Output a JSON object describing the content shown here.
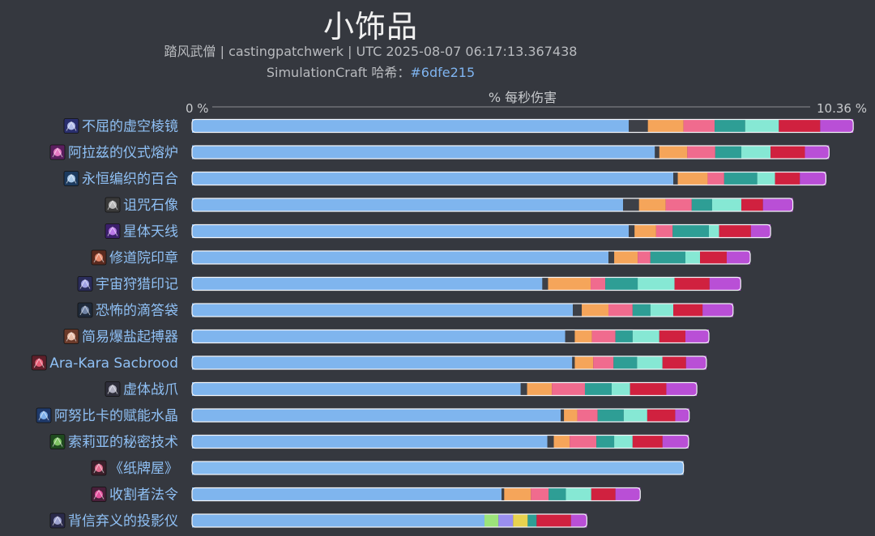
{
  "header": {
    "title": "小饰品",
    "subtitle": "踏风武僧 | castingpatchwerk | UTC 2025-08-07 06:17:13.367438",
    "hash_label": "SimulationCraft 哈希：",
    "hash_value": "#6dfe215"
  },
  "colors": {
    "base": "#7fb5ee",
    "base_alt": "#85bbf0",
    "dark": "#3d4047",
    "orange": "#f5a55a",
    "pink": "#f06b8e",
    "teal": "#2e9e95",
    "mint": "#86e8d4",
    "crimson": "#d0213f",
    "purple": "#b94fd6",
    "green": "#9be37a",
    "lavender": "#9a8ff0",
    "yellow": "#e8d24f"
  },
  "chart_data": {
    "type": "bar",
    "orientation": "horizontal",
    "stacked": true,
    "title": "小饰品",
    "axis_label": "% 每秒伤害",
    "xlim": [
      0,
      10.36
    ],
    "x_tick_labels": [
      "0 %",
      "10.36 %"
    ],
    "categories": [
      "不屈的虚空棱镜",
      "阿拉兹的仪式熔炉",
      "永恒编织的百合",
      "诅咒石像",
      "星体天线",
      "修道院印章",
      "宇宙狩猎印记",
      "恐怖的滴答袋",
      "简易爆盐起搏器",
      "Ara-Kara Sacbrood",
      "虚体战爪",
      "阿努比卡的赋能水晶",
      "索莉亚的秘密技术",
      "《纸牌屋》",
      "收割者法令",
      "背信弃义的投影仪"
    ],
    "icons": [
      "void-prism-icon",
      "ritual-forge-icon",
      "lily-icon",
      "cursed-statue-icon",
      "astral-antenna-icon",
      "monastery-seal-icon",
      "cosmic-mark-icon",
      "ticking-bag-icon",
      "salt-pacemaker-icon",
      "sacbrood-icon",
      "void-claw-icon",
      "crystal-icon",
      "secret-tech-icon",
      "house-of-cards-icon",
      "reaper-decree-icon",
      "projector-icon"
    ],
    "segments": [
      [
        [
          "base",
          6.87
        ],
        [
          "dark",
          0.3
        ],
        [
          "orange",
          0.56
        ],
        [
          "pink",
          0.49
        ],
        [
          "teal",
          0.48
        ],
        [
          "mint",
          0.53
        ],
        [
          "crimson",
          0.65
        ],
        [
          "purple",
          0.52
        ]
      ],
      [
        [
          "base",
          7.28
        ],
        [
          "dark",
          0.07
        ],
        [
          "orange",
          0.44
        ],
        [
          "pink",
          0.44
        ],
        [
          "teal",
          0.41
        ],
        [
          "mint",
          0.46
        ],
        [
          "crimson",
          0.54
        ],
        [
          "purple",
          0.38
        ]
      ],
      [
        [
          "base",
          7.57
        ],
        [
          "dark",
          0.07
        ],
        [
          "orange",
          0.47
        ],
        [
          "pink",
          0.26
        ],
        [
          "teal",
          0.52
        ],
        [
          "mint",
          0.28
        ],
        [
          "crimson",
          0.39
        ],
        [
          "purple",
          0.41
        ]
      ],
      [
        [
          "base",
          6.78
        ],
        [
          "dark",
          0.25
        ],
        [
          "orange",
          0.42
        ],
        [
          "pink",
          0.41
        ],
        [
          "teal",
          0.32
        ],
        [
          "mint",
          0.46
        ],
        [
          "crimson",
          0.34
        ],
        [
          "purple",
          0.47
        ]
      ],
      [
        [
          "base",
          6.87
        ],
        [
          "dark",
          0.09
        ],
        [
          "orange",
          0.34
        ],
        [
          "pink",
          0.26
        ],
        [
          "teal",
          0.57
        ],
        [
          "mint",
          0.16
        ],
        [
          "crimson",
          0.5
        ],
        [
          "purple",
          0.31
        ]
      ],
      [
        [
          "base",
          6.55
        ],
        [
          "dark",
          0.09
        ],
        [
          "orange",
          0.37
        ],
        [
          "pink",
          0.2
        ],
        [
          "teal",
          0.55
        ],
        [
          "mint",
          0.23
        ],
        [
          "crimson",
          0.42
        ],
        [
          "purple",
          0.37
        ]
      ],
      [
        [
          "base",
          5.51
        ],
        [
          "dark",
          0.09
        ],
        [
          "orange",
          0.67
        ],
        [
          "pink",
          0.23
        ],
        [
          "teal",
          0.51
        ],
        [
          "mint",
          0.58
        ],
        [
          "crimson",
          0.55
        ],
        [
          "purple",
          0.49
        ]
      ],
      [
        [
          "base",
          5.99
        ],
        [
          "dark",
          0.14
        ],
        [
          "orange",
          0.42
        ],
        [
          "pink",
          0.38
        ],
        [
          "teal",
          0.28
        ],
        [
          "mint",
          0.36
        ],
        [
          "crimson",
          0.46
        ],
        [
          "purple",
          0.48
        ]
      ],
      [
        [
          "base",
          5.87
        ],
        [
          "dark",
          0.15
        ],
        [
          "orange",
          0.27
        ],
        [
          "pink",
          0.37
        ],
        [
          "teal",
          0.27
        ],
        [
          "mint",
          0.42
        ],
        [
          "crimson",
          0.41
        ],
        [
          "purple",
          0.37
        ]
      ],
      [
        [
          "base",
          5.98
        ],
        [
          "dark",
          0.04
        ],
        [
          "orange",
          0.29
        ],
        [
          "pink",
          0.32
        ],
        [
          "teal",
          0.37
        ],
        [
          "mint",
          0.4
        ],
        [
          "crimson",
          0.37
        ],
        [
          "purple",
          0.32
        ]
      ],
      [
        [
          "base",
          5.17
        ],
        [
          "dark",
          0.1
        ],
        [
          "orange",
          0.39
        ],
        [
          "pink",
          0.52
        ],
        [
          "teal",
          0.42
        ],
        [
          "mint",
          0.29
        ],
        [
          "crimson",
          0.57
        ],
        [
          "purple",
          0.48
        ]
      ],
      [
        [
          "base",
          5.8
        ],
        [
          "dark",
          0.05
        ],
        [
          "orange",
          0.21
        ],
        [
          "pink",
          0.32
        ],
        [
          "teal",
          0.41
        ],
        [
          "mint",
          0.37
        ],
        [
          "crimson",
          0.44
        ],
        [
          "purple",
          0.22
        ]
      ],
      [
        [
          "base",
          5.59
        ],
        [
          "dark",
          0.1
        ],
        [
          "orange",
          0.25
        ],
        [
          "pink",
          0.42
        ],
        [
          "teal",
          0.28
        ],
        [
          "mint",
          0.29
        ],
        [
          "crimson",
          0.47
        ],
        [
          "purple",
          0.41
        ]
      ],
      [
        [
          "base_alt",
          7.73
        ]
      ],
      [
        [
          "base",
          4.87
        ],
        [
          "dark",
          0.04
        ],
        [
          "orange",
          0.42
        ],
        [
          "pink",
          0.28
        ],
        [
          "teal",
          0.27
        ],
        [
          "mint",
          0.4
        ],
        [
          "crimson",
          0.38
        ],
        [
          "purple",
          0.39
        ]
      ],
      [
        [
          "base",
          4.6
        ],
        [
          "green",
          0.22
        ],
        [
          "lavender",
          0.23
        ],
        [
          "yellow",
          0.23
        ],
        [
          "teal",
          0.14
        ],
        [
          "crimson",
          0.54
        ],
        [
          "purple",
          0.25
        ]
      ]
    ]
  }
}
